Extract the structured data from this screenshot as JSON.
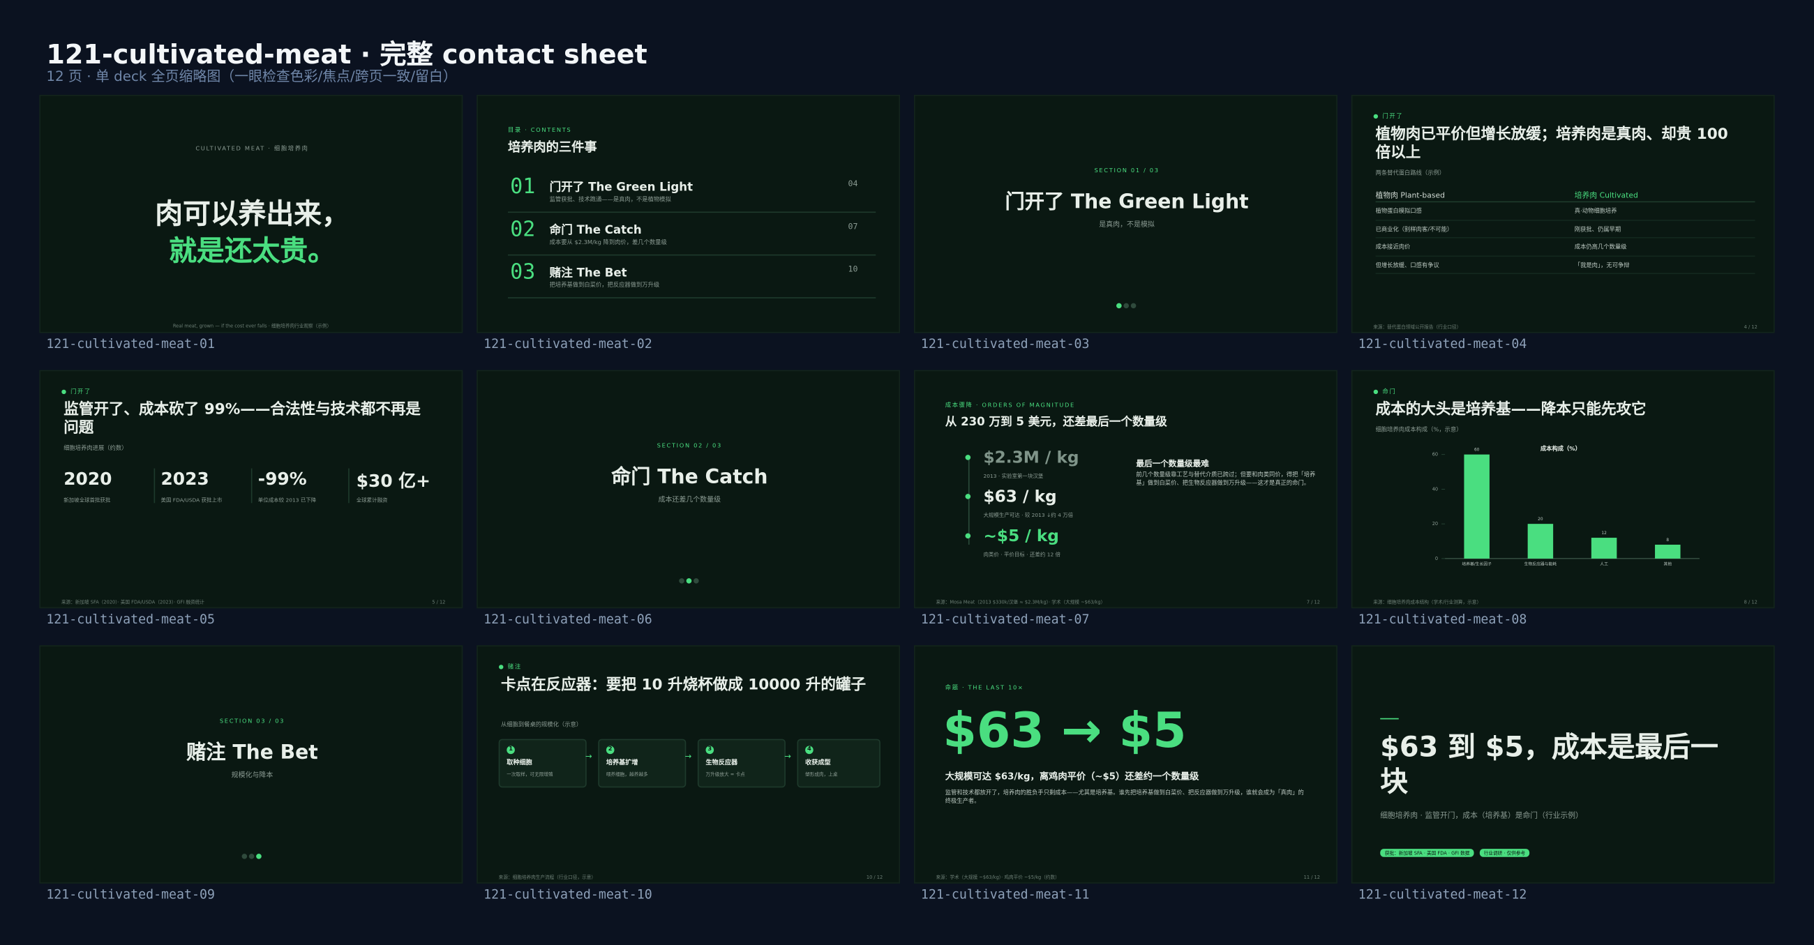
{
  "header": {
    "title": "121-cultivated-meat · 完整 contact sheet",
    "subtitle": "12 页 · 单 deck 全页缩略图（一眼检查色彩/焦点/跨页一致/留白）"
  },
  "slides": [
    {
      "label": "121-cultivated-meat-01",
      "kicker": "CULTIVATED MEAT · 细胞培养肉",
      "line1": "肉可以养出来，",
      "line2": "就是还太贵。",
      "footer": "Real meat, grown — if the cost ever falls · 细胞培养肉行业观察（示例）"
    },
    {
      "label": "121-cultivated-meat-02",
      "kicker": "目录 · CONTENTS",
      "title": "培养肉的三件事",
      "items": [
        {
          "num": "01",
          "title": "门开了 The Green Light",
          "desc": "监管获批、技术跑通——是真肉，不是植物模拟",
          "page": "04"
        },
        {
          "num": "02",
          "title": "命门 The Catch",
          "desc": "成本要从 $2.3M/kg 降到肉价，差几个数量级",
          "page": "07"
        },
        {
          "num": "03",
          "title": "赌注 The Bet",
          "desc": "把培养基做到白菜价，把反应器做到万升级",
          "page": "10"
        }
      ]
    },
    {
      "label": "121-cultivated-meat-03",
      "kicker": "SECTION 01 / 03",
      "title": "门开了 The Green Light",
      "subtitle": "是真肉，不是模拟"
    },
    {
      "label": "121-cultivated-meat-04",
      "tag": "门开了",
      "title": "植物肉已平价但增长放缓；培养肉是真肉、却贵 100 倍以上",
      "subtitle": "两条替代蛋白路线（示例）",
      "columns": [
        "植物肉 Plant-based",
        "培养肉 Cultivated"
      ],
      "rows": [
        [
          "植物蛋白模拟口感",
          "真·动物细胞培养"
        ],
        [
          "已商业化（别样肉客/不可能）",
          "刚获批、仍属早期"
        ],
        [
          "成本接近肉价",
          "成本仍高几个数量级"
        ],
        [
          "但增长放缓、口感有争议",
          "「我是肉」，无可争辩"
        ]
      ],
      "footer": "来源：替代蛋白领域公开报告（行业口径）",
      "page": "4 / 12"
    },
    {
      "label": "121-cultivated-meat-05",
      "tag": "门开了",
      "title": "监管开了、成本砍了 99%——合法性与技术都不再是问题",
      "subtitle": "细胞培养肉进展（约数）",
      "stats": [
        {
          "value": "2020",
          "desc": "新加坡全球首批获批"
        },
        {
          "value": "2023",
          "desc": "美国 FDA/USDA 获批上市"
        },
        {
          "value": "-99%",
          "desc": "单位成本较 2013 已下降"
        },
        {
          "value": "$30 亿+",
          "desc": "全球累计融资"
        }
      ],
      "footer": "来源：新加坡 SFA（2020）· 美国 FDA/USDA（2023）· GFI 融资统计",
      "page": "5 / 12"
    },
    {
      "label": "121-cultivated-meat-06",
      "kicker": "SECTION 02 / 03",
      "title": "命门 The Catch",
      "subtitle": "成本还差几个数量级"
    },
    {
      "label": "121-cultivated-meat-07",
      "kicker": "成本骤降 · ORDERS OF MAGNITUDE",
      "title": "从 230 万到 5 美元，还差最后一个数量级",
      "steps": [
        {
          "value": "$2.3M / kg",
          "desc": "2013 · 实验室第一块汉堡"
        },
        {
          "value": "$63 / kg",
          "desc": "大规模生产可达 · 较 2013 ↓约 4 万倍"
        },
        {
          "value": "~$5 / kg",
          "desc": "肉类价 · 平价目标 · 还差约 12 倍"
        }
      ],
      "note_title": "最后一个数量级最难",
      "note": "前几个数量级靠工艺与替代介质已跨过；但要和肉类同价，得把「培养基」做到白菜价、把生物反应器做到万升级——这才是真正的命门。",
      "footer": "来源：Mosa Meat（2013 $330k/汉堡 ≈ $2.3M/kg）· 学术（大规模 ~$63/kg）",
      "page": "7 / 12"
    },
    {
      "label": "121-cultivated-meat-08",
      "tag": "命门",
      "title": "成本的大头是培养基——降本只能先攻它",
      "subtitle": "细胞培养肉成本构成（%，示意）",
      "chart": {
        "type": "bar",
        "title": "成本构成（%）",
        "categories": [
          "培养基/生长因子",
          "生物反应器与能耗",
          "人工",
          "其他"
        ],
        "values": [
          60,
          20,
          12,
          8
        ],
        "color": "#4ade80",
        "ylim": [
          0,
          60
        ],
        "yticks": [
          0,
          20,
          40,
          60
        ]
      },
      "footer": "来源：细胞培养肉成本结构（学术/行业测算，示意）",
      "page": "8 / 12"
    },
    {
      "label": "121-cultivated-meat-09",
      "kicker": "SECTION 03 / 03",
      "title": "赌注 The Bet",
      "subtitle": "规模化与降本"
    },
    {
      "label": "121-cultivated-meat-10",
      "tag": "赌注",
      "title": "卡点在反应器：要把 10 升烧杯做成 10000 升的罐子",
      "subtitle": "从细胞到餐桌的规模化（示意）",
      "steps": [
        {
          "num": "1",
          "title": "取种细胞",
          "desc": "一次取样，可无限增殖"
        },
        {
          "num": "2",
          "title": "培养基扩增",
          "desc": "喂养细胞，越养越多"
        },
        {
          "num": "3",
          "title": "生物反应器",
          "desc": "万升级放大 = 卡点"
        },
        {
          "num": "4",
          "title": "收获成型",
          "desc": "塑形成肉，上桌"
        }
      ],
      "footer": "来源：细胞培养肉生产流程（行业口径，示意）",
      "page": "10 / 12"
    },
    {
      "label": "121-cultivated-meat-11",
      "kicker": "命题 · THE LAST 10×",
      "big": "$63 → $5",
      "title": "大规模可达 $63/kg，离鸡肉平价（~$5）还差约一个数量级",
      "body": "监管和技术都放开了，培养肉的胜负手只剩成本——尤其是培养基。谁先把培养基做到白菜价、把反应器做到万升级，谁就会成为「真肉」的终极生产者。",
      "footer": "来源：学术（大规模 ~$63/kg）· 鸡肉平价 ~$5/kg（约数）",
      "page": "11 / 12"
    },
    {
      "label": "121-cultivated-meat-12",
      "title": "$63 到 $5，成本是最后一块",
      "subtitle": "细胞培养肉 · 监管开门，成本（培养基）是命门（行业示例）",
      "tags": [
        "获批：新加坡 SFA · 美国 FDA · GFI 数据",
        "行业调研 · 仅供参考"
      ]
    }
  ]
}
